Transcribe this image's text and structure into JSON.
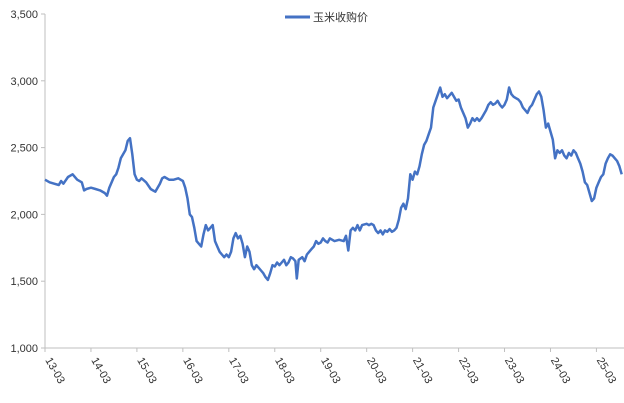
{
  "chart_data": {
    "type": "line",
    "title": "",
    "xlabel": "",
    "ylabel": "",
    "ylim": [
      1000,
      3500
    ],
    "yticks": [
      1000,
      1500,
      2000,
      2500,
      3000,
      3500
    ],
    "ytick_labels": [
      "1,000",
      "1,500",
      "2,000",
      "2,500",
      "3,000",
      "3,500"
    ],
    "xtick_labels": [
      "13-03",
      "14-03",
      "15-03",
      "16-03",
      "17-03",
      "18-03",
      "19-03",
      "20-03",
      "21-03",
      "22-03",
      "23-03",
      "24-03",
      "25-03"
    ],
    "xlim": [
      0,
      12.6
    ],
    "legend_position": "top-center",
    "grid": false,
    "series": [
      {
        "name": "玉米收购价",
        "color": "#4472C4",
        "points": [
          [
            0.0,
            2260
          ],
          [
            0.1,
            2240
          ],
          [
            0.2,
            2230
          ],
          [
            0.3,
            2220
          ],
          [
            0.35,
            2250
          ],
          [
            0.4,
            2230
          ],
          [
            0.5,
            2280
          ],
          [
            0.6,
            2300
          ],
          [
            0.7,
            2260
          ],
          [
            0.8,
            2240
          ],
          [
            0.85,
            2180
          ],
          [
            0.9,
            2190
          ],
          [
            1.0,
            2200
          ],
          [
            1.1,
            2190
          ],
          [
            1.2,
            2180
          ],
          [
            1.3,
            2160
          ],
          [
            1.35,
            2140
          ],
          [
            1.4,
            2200
          ],
          [
            1.5,
            2280
          ],
          [
            1.55,
            2300
          ],
          [
            1.6,
            2350
          ],
          [
            1.65,
            2420
          ],
          [
            1.7,
            2450
          ],
          [
            1.75,
            2480
          ],
          [
            1.8,
            2550
          ],
          [
            1.85,
            2570
          ],
          [
            1.9,
            2450
          ],
          [
            1.95,
            2300
          ],
          [
            2.0,
            2260
          ],
          [
            2.05,
            2250
          ],
          [
            2.1,
            2270
          ],
          [
            2.2,
            2240
          ],
          [
            2.3,
            2190
          ],
          [
            2.35,
            2180
          ],
          [
            2.4,
            2170
          ],
          [
            2.5,
            2230
          ],
          [
            2.55,
            2270
          ],
          [
            2.6,
            2280
          ],
          [
            2.7,
            2260
          ],
          [
            2.8,
            2260
          ],
          [
            2.9,
            2270
          ],
          [
            3.0,
            2250
          ],
          [
            3.05,
            2200
          ],
          [
            3.1,
            2120
          ],
          [
            3.15,
            2000
          ],
          [
            3.2,
            1980
          ],
          [
            3.25,
            1900
          ],
          [
            3.3,
            1800
          ],
          [
            3.35,
            1780
          ],
          [
            3.4,
            1760
          ],
          [
            3.45,
            1850
          ],
          [
            3.5,
            1920
          ],
          [
            3.55,
            1880
          ],
          [
            3.6,
            1900
          ],
          [
            3.65,
            1920
          ],
          [
            3.7,
            1800
          ],
          [
            3.75,
            1760
          ],
          [
            3.8,
            1720
          ],
          [
            3.85,
            1700
          ],
          [
            3.9,
            1680
          ],
          [
            3.95,
            1700
          ],
          [
            4.0,
            1680
          ],
          [
            4.05,
            1720
          ],
          [
            4.1,
            1820
          ],
          [
            4.15,
            1860
          ],
          [
            4.2,
            1820
          ],
          [
            4.25,
            1840
          ],
          [
            4.3,
            1780
          ],
          [
            4.35,
            1680
          ],
          [
            4.4,
            1760
          ],
          [
            4.45,
            1720
          ],
          [
            4.5,
            1620
          ],
          [
            4.55,
            1590
          ],
          [
            4.6,
            1620
          ],
          [
            4.65,
            1600
          ],
          [
            4.7,
            1580
          ],
          [
            4.75,
            1560
          ],
          [
            4.8,
            1530
          ],
          [
            4.85,
            1510
          ],
          [
            4.9,
            1560
          ],
          [
            4.95,
            1620
          ],
          [
            5.0,
            1610
          ],
          [
            5.05,
            1640
          ],
          [
            5.1,
            1620
          ],
          [
            5.15,
            1640
          ],
          [
            5.2,
            1660
          ],
          [
            5.25,
            1620
          ],
          [
            5.3,
            1640
          ],
          [
            5.35,
            1680
          ],
          [
            5.4,
            1670
          ],
          [
            5.45,
            1650
          ],
          [
            5.48,
            1520
          ],
          [
            5.52,
            1660
          ],
          [
            5.6,
            1680
          ],
          [
            5.65,
            1650
          ],
          [
            5.7,
            1700
          ],
          [
            5.75,
            1720
          ],
          [
            5.8,
            1740
          ],
          [
            5.85,
            1760
          ],
          [
            5.9,
            1800
          ],
          [
            5.95,
            1780
          ],
          [
            6.0,
            1790
          ],
          [
            6.05,
            1820
          ],
          [
            6.1,
            1800
          ],
          [
            6.15,
            1790
          ],
          [
            6.2,
            1820
          ],
          [
            6.3,
            1800
          ],
          [
            6.4,
            1810
          ],
          [
            6.5,
            1800
          ],
          [
            6.55,
            1840
          ],
          [
            6.6,
            1730
          ],
          [
            6.65,
            1880
          ],
          [
            6.7,
            1900
          ],
          [
            6.75,
            1880
          ],
          [
            6.8,
            1920
          ],
          [
            6.85,
            1880
          ],
          [
            6.9,
            1920
          ],
          [
            7.0,
            1930
          ],
          [
            7.05,
            1920
          ],
          [
            7.1,
            1930
          ],
          [
            7.15,
            1920
          ],
          [
            7.2,
            1880
          ],
          [
            7.25,
            1860
          ],
          [
            7.3,
            1880
          ],
          [
            7.35,
            1850
          ],
          [
            7.4,
            1880
          ],
          [
            7.45,
            1870
          ],
          [
            7.5,
            1890
          ],
          [
            7.55,
            1870
          ],
          [
            7.6,
            1880
          ],
          [
            7.65,
            1900
          ],
          [
            7.7,
            1960
          ],
          [
            7.75,
            2050
          ],
          [
            7.8,
            2080
          ],
          [
            7.85,
            2040
          ],
          [
            7.9,
            2120
          ],
          [
            7.95,
            2300
          ],
          [
            8.0,
            2260
          ],
          [
            8.05,
            2320
          ],
          [
            8.1,
            2300
          ],
          [
            8.15,
            2360
          ],
          [
            8.2,
            2450
          ],
          [
            8.25,
            2520
          ],
          [
            8.3,
            2550
          ],
          [
            8.35,
            2600
          ],
          [
            8.4,
            2650
          ],
          [
            8.45,
            2800
          ],
          [
            8.5,
            2850
          ],
          [
            8.55,
            2900
          ],
          [
            8.6,
            2950
          ],
          [
            8.65,
            2880
          ],
          [
            8.7,
            2900
          ],
          [
            8.75,
            2870
          ],
          [
            8.8,
            2890
          ],
          [
            8.85,
            2910
          ],
          [
            8.9,
            2880
          ],
          [
            8.95,
            2850
          ],
          [
            9.0,
            2860
          ],
          [
            9.05,
            2800
          ],
          [
            9.1,
            2760
          ],
          [
            9.15,
            2720
          ],
          [
            9.2,
            2650
          ],
          [
            9.25,
            2680
          ],
          [
            9.3,
            2720
          ],
          [
            9.35,
            2700
          ],
          [
            9.4,
            2720
          ],
          [
            9.45,
            2700
          ],
          [
            9.5,
            2720
          ],
          [
            9.55,
            2750
          ],
          [
            9.6,
            2780
          ],
          [
            9.65,
            2820
          ],
          [
            9.7,
            2840
          ],
          [
            9.75,
            2820
          ],
          [
            9.8,
            2830
          ],
          [
            9.85,
            2850
          ],
          [
            9.9,
            2820
          ],
          [
            9.95,
            2800
          ],
          [
            10.0,
            2820
          ],
          [
            10.05,
            2860
          ],
          [
            10.1,
            2950
          ],
          [
            10.15,
            2900
          ],
          [
            10.2,
            2880
          ],
          [
            10.25,
            2870
          ],
          [
            10.3,
            2860
          ],
          [
            10.35,
            2840
          ],
          [
            10.4,
            2800
          ],
          [
            10.45,
            2780
          ],
          [
            10.5,
            2760
          ],
          [
            10.55,
            2800
          ],
          [
            10.6,
            2820
          ],
          [
            10.65,
            2860
          ],
          [
            10.7,
            2900
          ],
          [
            10.75,
            2920
          ],
          [
            10.8,
            2880
          ],
          [
            10.85,
            2780
          ],
          [
            10.9,
            2650
          ],
          [
            10.95,
            2680
          ],
          [
            11.0,
            2620
          ],
          [
            11.05,
            2560
          ],
          [
            11.1,
            2420
          ],
          [
            11.15,
            2480
          ],
          [
            11.2,
            2460
          ],
          [
            11.25,
            2480
          ],
          [
            11.3,
            2440
          ],
          [
            11.35,
            2420
          ],
          [
            11.4,
            2460
          ],
          [
            11.45,
            2440
          ],
          [
            11.5,
            2480
          ],
          [
            11.55,
            2460
          ],
          [
            11.6,
            2420
          ],
          [
            11.65,
            2380
          ],
          [
            11.7,
            2320
          ],
          [
            11.75,
            2240
          ],
          [
            11.8,
            2220
          ],
          [
            11.85,
            2160
          ],
          [
            11.9,
            2100
          ],
          [
            11.95,
            2120
          ],
          [
            12.0,
            2200
          ],
          [
            12.05,
            2240
          ],
          [
            12.1,
            2280
          ],
          [
            12.15,
            2300
          ],
          [
            12.2,
            2380
          ],
          [
            12.25,
            2420
          ],
          [
            12.3,
            2450
          ],
          [
            12.35,
            2440
          ],
          [
            12.4,
            2420
          ],
          [
            12.45,
            2400
          ],
          [
            12.5,
            2360
          ],
          [
            12.55,
            2300
          ]
        ]
      }
    ]
  }
}
